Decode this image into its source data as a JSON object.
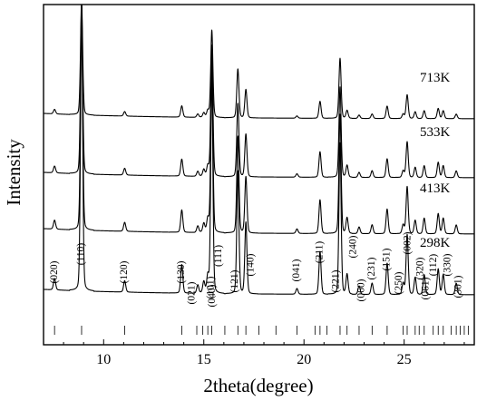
{
  "chart_data": {
    "type": "line",
    "title": "",
    "xlabel": "2theta(degree)",
    "ylabel": "Intensity",
    "xlim": [
      7,
      28.5
    ],
    "xticks": [
      10,
      15,
      20,
      25
    ],
    "yticks_shown": false,
    "grid": false,
    "legend": "none",
    "series": [
      {
        "name": "298K"
      },
      {
        "name": "413K"
      },
      {
        "name": "533K"
      },
      {
        "name": "713K"
      }
    ],
    "peaks": [
      {
        "hkl": "(020)",
        "two_theta": 7.55,
        "intensity": 0.04
      },
      {
        "hkl": "(110)",
        "two_theta": 8.9,
        "intensity": 1.0
      },
      {
        "hkl": "(120)",
        "two_theta": 11.05,
        "intensity": 0.04
      },
      {
        "hkl": "(130)",
        "two_theta": 13.9,
        "intensity": 0.1
      },
      {
        "hkl": "(021)",
        "two_theta": 14.7,
        "intensity": 0.03
      },
      {
        "hkl": "(101)",
        "two_theta": 15.0,
        "intensity": 0.04
      },
      {
        "hkl": "(040)",
        "two_theta": 15.2,
        "intensity": 0.06
      },
      {
        "hkl": "(111)",
        "two_theta": 15.4,
        "intensity": 0.77
      },
      {
        "hkl": "(121)",
        "two_theta": 16.7,
        "intensity": 0.43
      },
      {
        "hkl": "(140)",
        "two_theta": 17.1,
        "intensity": 0.25
      },
      {
        "hkl": "(041)",
        "two_theta": 19.65,
        "intensity": 0.02
      },
      {
        "hkl": "(211)",
        "two_theta": 20.8,
        "intensity": 0.15
      },
      {
        "hkl": "(221)",
        "two_theta": 21.8,
        "intensity": 0.53
      },
      {
        "hkl": "(240)",
        "two_theta": 22.15,
        "intensity": 0.07
      },
      {
        "hkl": "(060)",
        "two_theta": 22.75,
        "intensity": 0.03
      },
      {
        "hkl": "(231)",
        "two_theta": 23.4,
        "intensity": 0.04
      },
      {
        "hkl": "(151)",
        "two_theta": 24.15,
        "intensity": 0.11
      },
      {
        "hkl": "(250)",
        "two_theta": 24.95,
        "intensity": 0.04
      },
      {
        "hkl": "(002)",
        "two_theta": 25.15,
        "intensity": 0.21
      },
      {
        "hkl": "(320)",
        "two_theta": 25.55,
        "intensity": 0.06
      },
      {
        "hkl": "(061)",
        "two_theta": 26.0,
        "intensity": 0.07
      },
      {
        "hkl": "(112)",
        "two_theta": 26.7,
        "intensity": 0.09
      },
      {
        "hkl": "(330)",
        "two_theta": 26.95,
        "intensity": 0.07
      },
      {
        "hkl": "(301)",
        "two_theta": 27.6,
        "intensity": 0.04
      }
    ],
    "reference_positions": [
      7.55,
      8.9,
      11.05,
      13.9,
      14.65,
      14.95,
      15.2,
      15.4,
      16.05,
      16.7,
      17.1,
      17.75,
      18.6,
      19.65,
      20.55,
      20.8,
      21.15,
      21.8,
      22.15,
      22.75,
      23.4,
      24.15,
      24.95,
      25.15,
      25.55,
      25.75,
      26.0,
      26.45,
      26.7,
      26.95,
      27.35,
      27.6,
      27.8,
      28.0,
      28.2
    ]
  }
}
